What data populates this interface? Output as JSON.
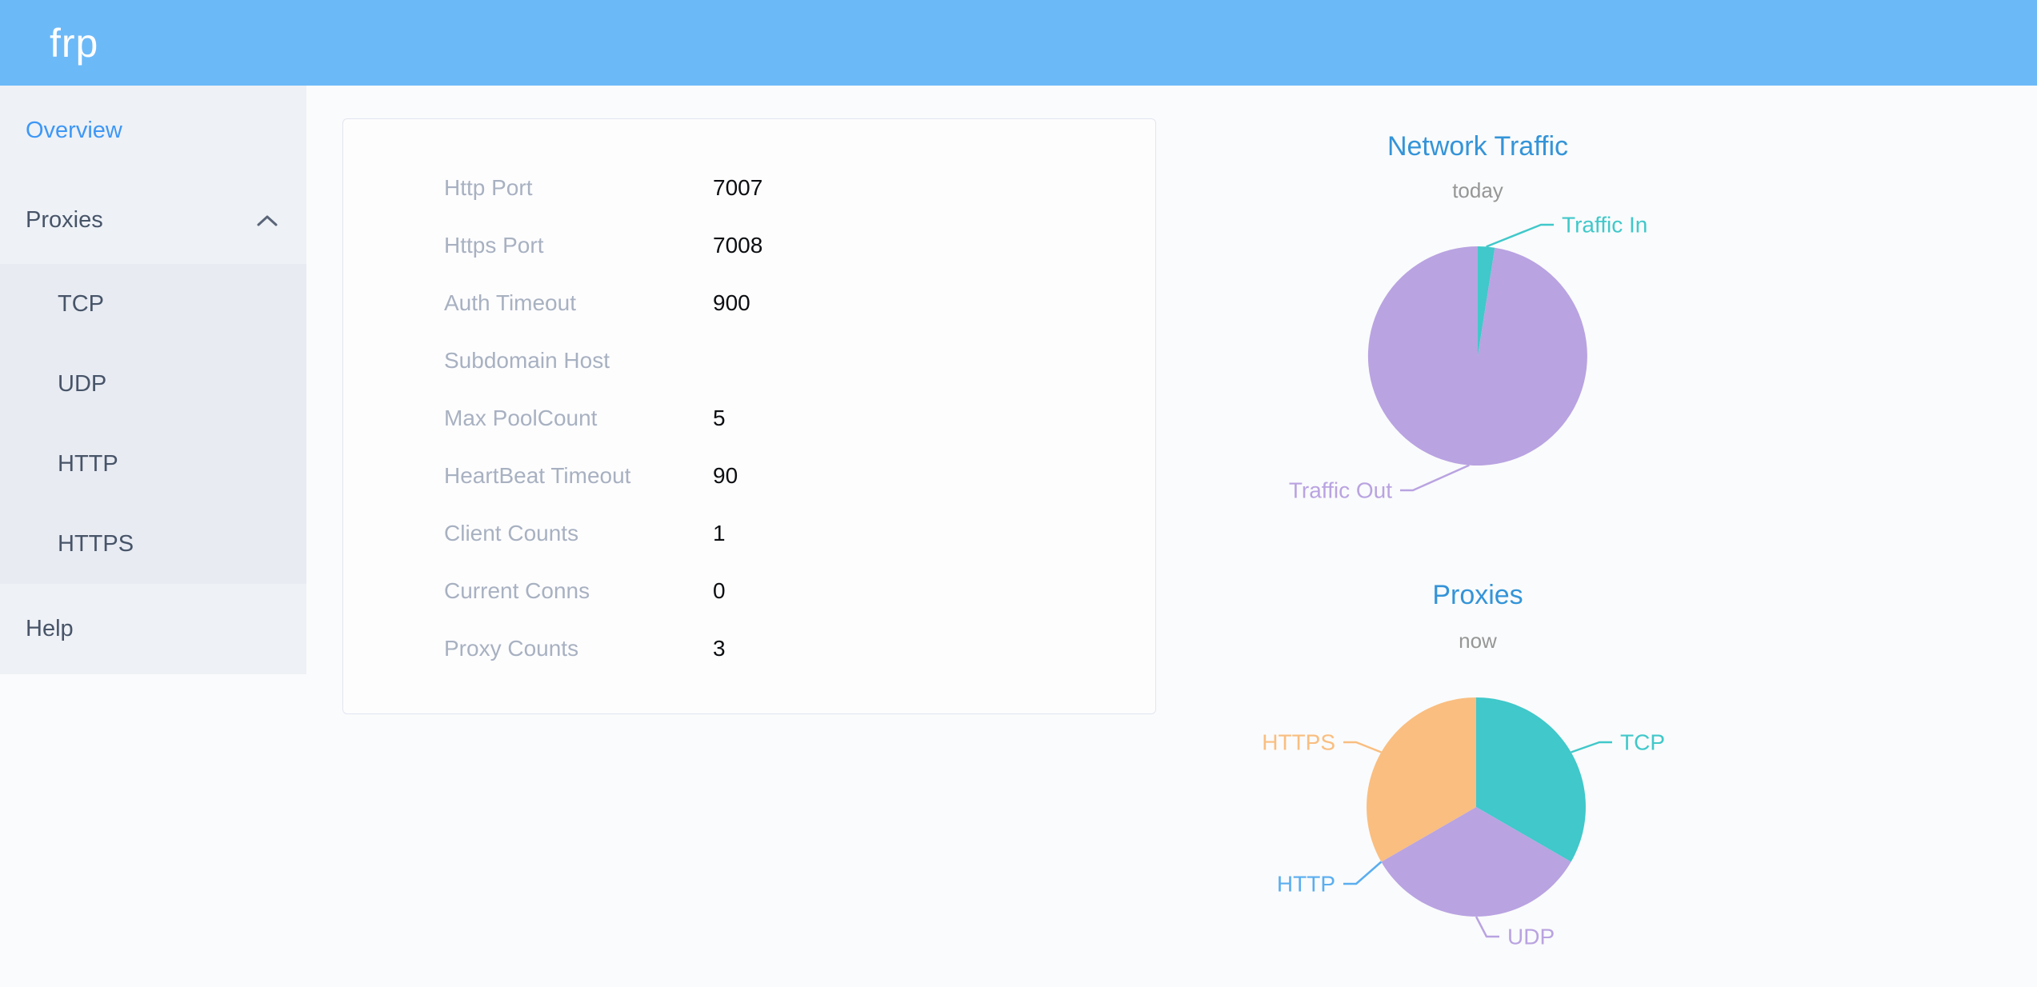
{
  "header": {
    "logo": "frp"
  },
  "colors": {
    "header_bg": "#6cb9f8",
    "sidebar_active": "#3e97f5",
    "chart_title": "#3494d8"
  },
  "sidebar": {
    "overview": "Overview",
    "proxies": "Proxies",
    "submenu": [
      "TCP",
      "UDP",
      "HTTP",
      "HTTPS"
    ],
    "help": "Help"
  },
  "server_info": {
    "rows": [
      {
        "label": "Http Port",
        "value": "7007"
      },
      {
        "label": "Https Port",
        "value": "7008"
      },
      {
        "label": "Auth Timeout",
        "value": "900"
      },
      {
        "label": "Subdomain Host",
        "value": ""
      },
      {
        "label": "Max PoolCount",
        "value": "5"
      },
      {
        "label": "HeartBeat Timeout",
        "value": "90"
      },
      {
        "label": "Client Counts",
        "value": "1"
      },
      {
        "label": "Current Conns",
        "value": "0"
      },
      {
        "label": "Proxy Counts",
        "value": "3"
      }
    ]
  },
  "chart_data": [
    {
      "type": "pie",
      "title": "Network Traffic",
      "subtitle": "today",
      "legend_position": "callout-labels",
      "grid": false,
      "slices": [
        {
          "label": "Traffic In",
          "value": 2.5,
          "color": "#40c8ca"
        },
        {
          "label": "Traffic Out",
          "value": 97.5,
          "color": "#b9a3e1"
        }
      ]
    },
    {
      "type": "pie",
      "title": "Proxies",
      "subtitle": "now",
      "legend_position": "callout-labels",
      "grid": false,
      "slices": [
        {
          "label": "TCP",
          "value": 1,
          "color": "#40c8ca"
        },
        {
          "label": "UDP",
          "value": 1,
          "color": "#b9a3e1"
        },
        {
          "label": "HTTP",
          "value": 0,
          "color": "#5aaef0"
        },
        {
          "label": "HTTPS",
          "value": 1,
          "color": "#f9be80"
        }
      ]
    }
  ]
}
